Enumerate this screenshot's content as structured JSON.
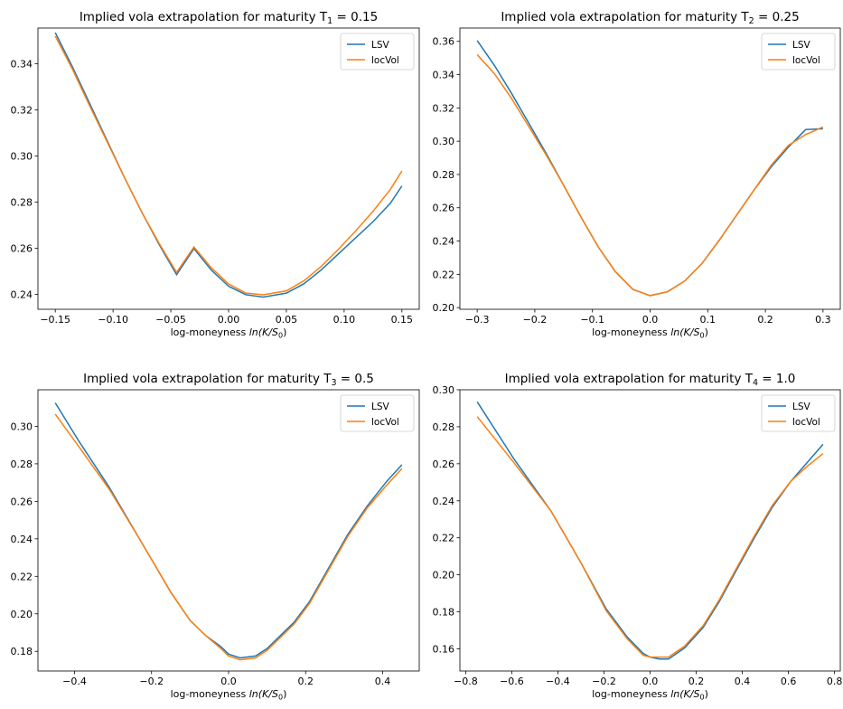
{
  "chart_data": [
    {
      "type": "line",
      "title_prefix": "Implied vola extrapolation for maturity T",
      "title_sub": "1",
      "title_suffix": " = 0.15",
      "xlabel_prefix": "log-moneyness ",
      "xlabel_math": "ln(K/S",
      "xlabel_sub": "0",
      "xlabel_suffix": ")",
      "xlim": [
        -0.165,
        0.165
      ],
      "ylim": [
        0.2335,
        0.3555
      ],
      "xticks": [
        -0.15,
        -0.1,
        -0.05,
        0.0,
        0.05,
        0.1,
        0.15
      ],
      "xtick_labels": [
        "−0.15",
        "−0.10",
        "−0.05",
        "0.00",
        "0.05",
        "0.10",
        "0.15"
      ],
      "yticks": [
        0.24,
        0.26,
        0.28,
        0.3,
        0.32,
        0.34
      ],
      "ytick_labels": [
        "0.24",
        "0.26",
        "0.28",
        "0.30",
        "0.32",
        "0.34"
      ],
      "legend_position": "top-right",
      "series": [
        {
          "name": "LSV",
          "color": "#1f77b4",
          "x": [
            -0.15,
            -0.135,
            -0.12,
            -0.105,
            -0.09,
            -0.075,
            -0.06,
            -0.045,
            -0.03,
            -0.015,
            0.0,
            0.015,
            0.03,
            0.05,
            0.065,
            0.08,
            0.095,
            0.11,
            0.125,
            0.14,
            0.15
          ],
          "y": [
            0.3535,
            0.3385,
            0.3225,
            0.3065,
            0.2905,
            0.2755,
            0.2615,
            0.2485,
            0.2598,
            0.2505,
            0.2435,
            0.2398,
            0.2388,
            0.2405,
            0.2445,
            0.2505,
            0.2575,
            0.2645,
            0.2715,
            0.2795,
            0.287
          ]
        },
        {
          "name": "locVol",
          "color": "#ff7f0e",
          "x": [
            -0.15,
            -0.135,
            -0.12,
            -0.105,
            -0.09,
            -0.075,
            -0.06,
            -0.045,
            -0.03,
            -0.015,
            0.0,
            0.015,
            0.03,
            0.05,
            0.065,
            0.08,
            0.095,
            0.11,
            0.125,
            0.14,
            0.15
          ],
          "y": [
            0.352,
            0.3375,
            0.3215,
            0.306,
            0.2905,
            0.2755,
            0.262,
            0.2495,
            0.2605,
            0.2515,
            0.2445,
            0.2405,
            0.2398,
            0.2415,
            0.2458,
            0.252,
            0.2595,
            0.2675,
            0.276,
            0.2855,
            0.2935
          ]
        }
      ]
    },
    {
      "type": "line",
      "title_prefix": "Implied vola extrapolation for maturity T",
      "title_sub": "2",
      "title_suffix": " = 0.25",
      "xlabel_prefix": "log-moneyness ",
      "xlabel_math": "ln(K/S",
      "xlabel_sub": "0",
      "xlabel_suffix": ")",
      "xlim": [
        -0.33,
        0.33
      ],
      "ylim": [
        0.199,
        0.368
      ],
      "xticks": [
        -0.3,
        -0.2,
        -0.1,
        0.0,
        0.1,
        0.2,
        0.3
      ],
      "xtick_labels": [
        "−0.3",
        "−0.2",
        "−0.1",
        "0.0",
        "0.1",
        "0.2",
        "0.3"
      ],
      "yticks": [
        0.2,
        0.22,
        0.24,
        0.26,
        0.28,
        0.3,
        0.32,
        0.34,
        0.36
      ],
      "ytick_labels": [
        "0.20",
        "0.22",
        "0.24",
        "0.26",
        "0.28",
        "0.30",
        "0.32",
        "0.34",
        "0.36"
      ],
      "legend_position": "top-right",
      "series": [
        {
          "name": "LSV",
          "color": "#1f77b4",
          "x": [
            -0.3,
            -0.27,
            -0.24,
            -0.21,
            -0.18,
            -0.15,
            -0.12,
            -0.09,
            -0.06,
            -0.03,
            0.0,
            0.03,
            0.06,
            0.09,
            0.12,
            0.15,
            0.18,
            0.21,
            0.24,
            0.27,
            0.3
          ],
          "y": [
            0.3605,
            0.3455,
            0.3285,
            0.3105,
            0.2925,
            0.2735,
            0.2545,
            0.2365,
            0.2215,
            0.211,
            0.2072,
            0.2095,
            0.216,
            0.2265,
            0.2405,
            0.2555,
            0.2705,
            0.2845,
            0.2965,
            0.307,
            0.3075
          ]
        },
        {
          "name": "locVol",
          "color": "#ff7f0e",
          "x": [
            -0.3,
            -0.27,
            -0.24,
            -0.21,
            -0.18,
            -0.15,
            -0.12,
            -0.09,
            -0.06,
            -0.03,
            0.0,
            0.03,
            0.06,
            0.09,
            0.12,
            0.15,
            0.18,
            0.21,
            0.24,
            0.27,
            0.3
          ],
          "y": [
            0.352,
            0.3405,
            0.3255,
            0.3085,
            0.2915,
            0.2735,
            0.2545,
            0.2365,
            0.2215,
            0.211,
            0.2072,
            0.2095,
            0.216,
            0.2265,
            0.2405,
            0.2555,
            0.2705,
            0.2855,
            0.2975,
            0.304,
            0.3085
          ]
        }
      ]
    },
    {
      "type": "line",
      "title_prefix": "Implied vola extrapolation for maturity T",
      "title_sub": "3",
      "title_suffix": " = 0.5",
      "xlabel_prefix": "log-moneyness ",
      "xlabel_math": "ln(K/S",
      "xlabel_sub": "0",
      "xlabel_suffix": ")",
      "xlim": [
        -0.495,
        0.495
      ],
      "ylim": [
        0.1695,
        0.3195
      ],
      "xticks": [
        -0.4,
        -0.2,
        0.0,
        0.2,
        0.4
      ],
      "xtick_labels": [
        "−0.4",
        "−0.2",
        "0.0",
        "0.2",
        "0.4"
      ],
      "yticks": [
        0.18,
        0.2,
        0.22,
        0.24,
        0.26,
        0.28,
        0.3
      ],
      "ytick_labels": [
        "0.18",
        "0.20",
        "0.22",
        "0.24",
        "0.26",
        "0.28",
        "0.30"
      ],
      "legend_position": "top-right",
      "series": [
        {
          "name": "LSV",
          "color": "#1f77b4",
          "x": [
            -0.45,
            -0.39,
            -0.31,
            -0.23,
            -0.15,
            -0.1,
            -0.06,
            -0.02,
            0.0,
            0.03,
            0.07,
            0.1,
            0.13,
            0.17,
            0.21,
            0.26,
            0.31,
            0.36,
            0.41,
            0.45
          ],
          "y": [
            0.3125,
            0.2925,
            0.2675,
            0.2395,
            0.2115,
            0.1965,
            0.1885,
            0.1825,
            0.1785,
            0.1765,
            0.1775,
            0.1815,
            0.1875,
            0.1955,
            0.2065,
            0.2245,
            0.2425,
            0.2575,
            0.2705,
            0.2795
          ]
        },
        {
          "name": "locVol",
          "color": "#ff7f0e",
          "x": [
            -0.45,
            -0.39,
            -0.31,
            -0.23,
            -0.15,
            -0.1,
            -0.06,
            -0.02,
            0.0,
            0.03,
            0.07,
            0.1,
            0.13,
            0.17,
            0.21,
            0.26,
            0.31,
            0.36,
            0.41,
            0.45
          ],
          "y": [
            0.3065,
            0.2895,
            0.2665,
            0.2395,
            0.2115,
            0.1965,
            0.1885,
            0.1815,
            0.1775,
            0.1755,
            0.1765,
            0.1805,
            0.1865,
            0.1945,
            0.2055,
            0.2235,
            0.2415,
            0.2565,
            0.2685,
            0.2775
          ]
        }
      ]
    },
    {
      "type": "line",
      "title_prefix": "Implied vola extrapolation for maturity T",
      "title_sub": "4",
      "title_suffix": " = 1.0",
      "xlabel_prefix": "log-moneyness ",
      "xlabel_math": "ln(K/S",
      "xlabel_sub": "0",
      "xlabel_suffix": ")",
      "xlim": [
        -0.825,
        0.825
      ],
      "ylim": [
        0.148,
        0.3
      ],
      "xticks": [
        -0.8,
        -0.6,
        -0.4,
        -0.2,
        0.0,
        0.2,
        0.4,
        0.6,
        0.8
      ],
      "xtick_labels": [
        "−0.8",
        "−0.6",
        "−0.4",
        "−0.2",
        "0.0",
        "0.2",
        "0.4",
        "0.6",
        "0.8"
      ],
      "yticks": [
        0.16,
        0.18,
        0.2,
        0.22,
        0.24,
        0.26,
        0.28,
        0.3
      ],
      "ytick_labels": [
        "0.16",
        "0.18",
        "0.20",
        "0.22",
        "0.24",
        "0.26",
        "0.28",
        "0.30"
      ],
      "legend_position": "top-right",
      "series": [
        {
          "name": "LSV",
          "color": "#1f77b4",
          "x": [
            -0.75,
            -0.59,
            -0.43,
            -0.3,
            -0.19,
            -0.1,
            -0.03,
            0.0,
            0.04,
            0.08,
            0.15,
            0.23,
            0.3,
            0.37,
            0.45,
            0.53,
            0.61,
            0.68,
            0.75
          ],
          "y": [
            0.2935,
            0.2625,
            0.2345,
            0.2065,
            0.1815,
            0.1665,
            0.1575,
            0.1555,
            0.1545,
            0.1545,
            0.1605,
            0.1715,
            0.1855,
            0.2015,
            0.2195,
            0.2365,
            0.2505,
            0.2605,
            0.2705
          ]
        },
        {
          "name": "locVol",
          "color": "#ff7f0e",
          "x": [
            -0.75,
            -0.59,
            -0.43,
            -0.3,
            -0.19,
            -0.1,
            -0.03,
            0.0,
            0.04,
            0.08,
            0.15,
            0.23,
            0.3,
            0.37,
            0.45,
            0.53,
            0.61,
            0.68,
            0.75
          ],
          "y": [
            0.2855,
            0.2605,
            0.2345,
            0.2065,
            0.1805,
            0.1655,
            0.1565,
            0.1555,
            0.1555,
            0.1555,
            0.1615,
            0.1725,
            0.1865,
            0.2025,
            0.2205,
            0.2375,
            0.2505,
            0.2585,
            0.2655
          ]
        }
      ]
    }
  ]
}
